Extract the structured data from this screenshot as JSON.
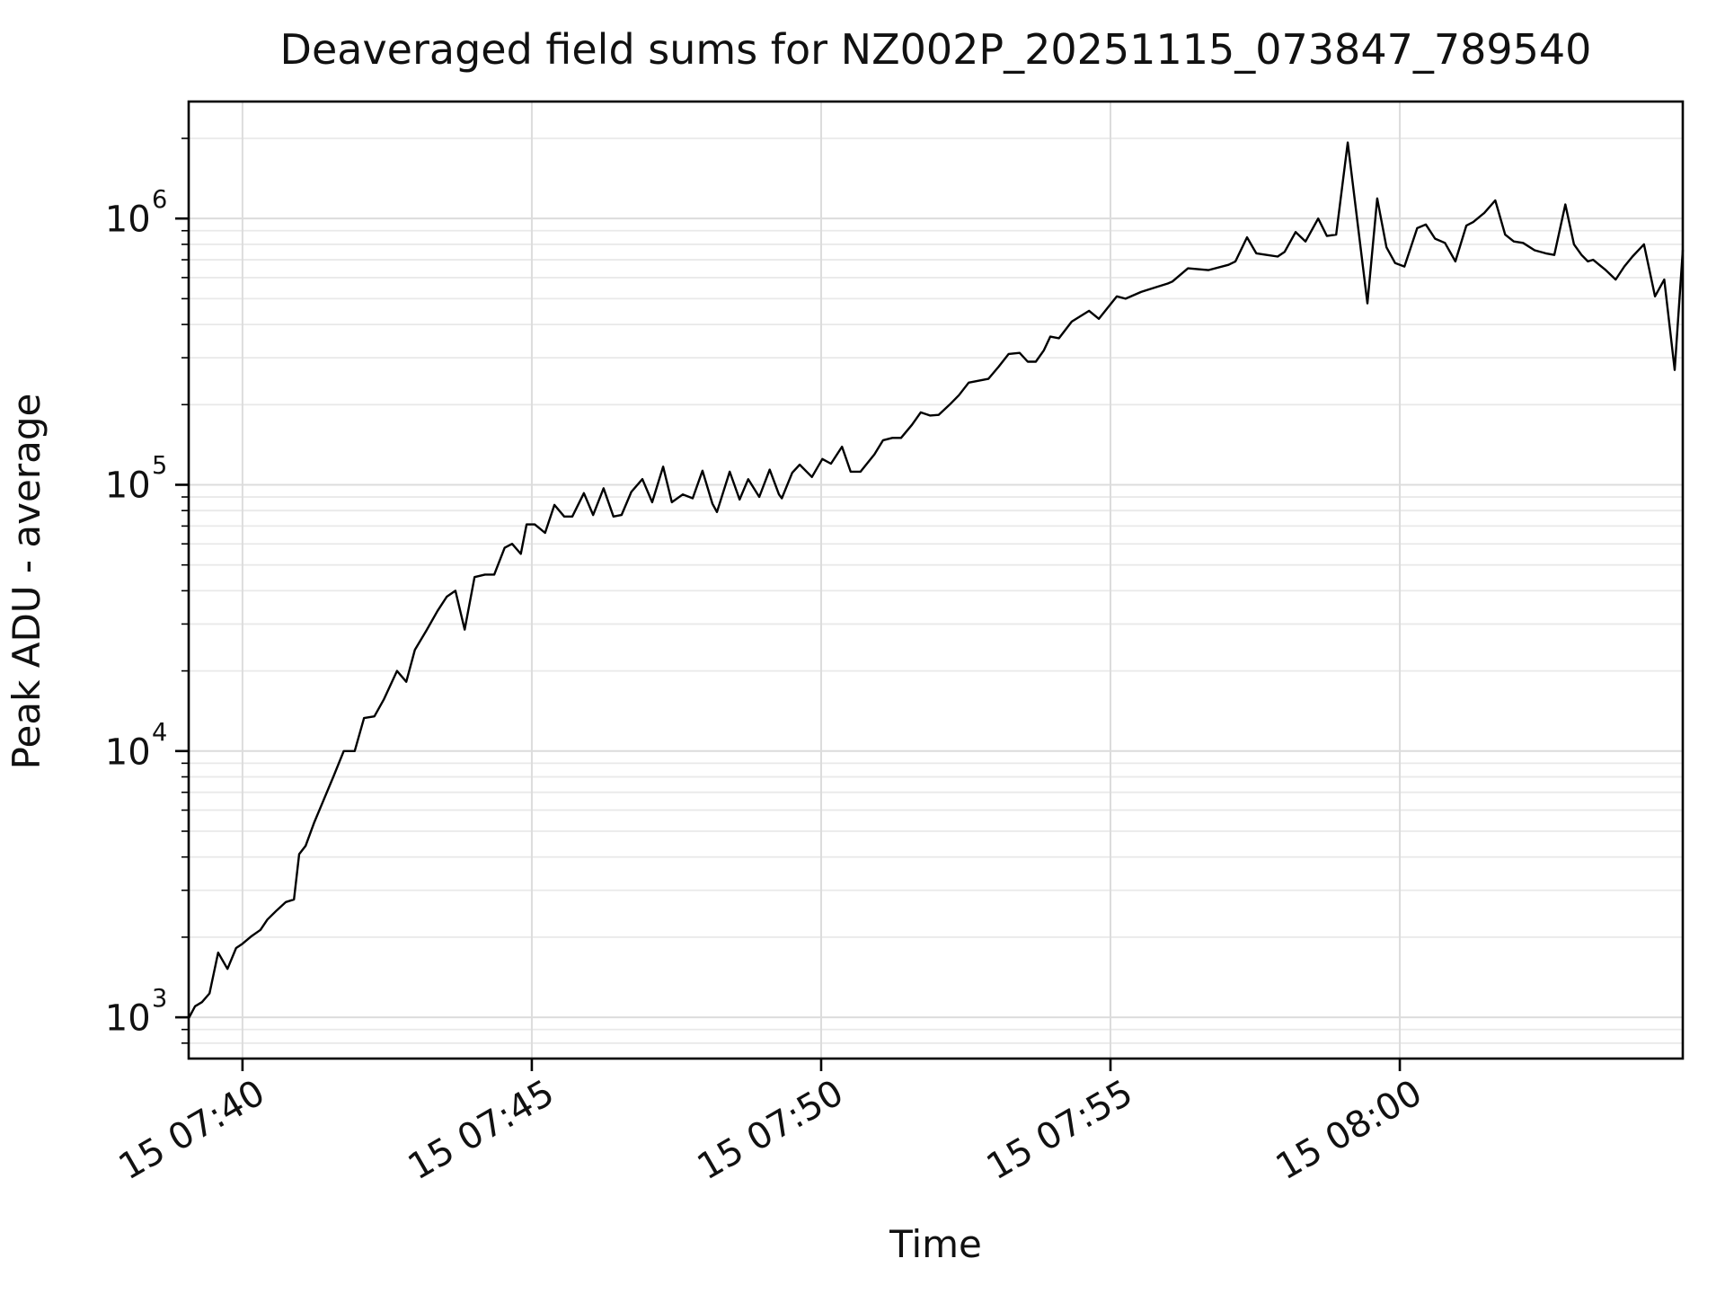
{
  "figure": {
    "background": "#ffffff"
  },
  "chart_data": {
    "type": "line",
    "title": "Deaveraged field sums for NZ002P_20251115_073847_789540",
    "xlabel": "Time",
    "ylabel": "Peak ADU - average",
    "y_scale": "log",
    "grid": true,
    "legend": "none",
    "x_unit": "minutes after 07:00 (day 15)",
    "x_range": [
      39.07,
      64.89
    ],
    "y_range": [
      700,
      2750000
    ],
    "x_ticks": [
      {
        "minute": 40,
        "label": "15 07:40"
      },
      {
        "minute": 45,
        "label": "15 07:45"
      },
      {
        "minute": 50,
        "label": "15 07:50"
      },
      {
        "minute": 55,
        "label": "15 07:55"
      },
      {
        "minute": 60,
        "label": "15 08:00"
      }
    ],
    "y_ticks": [
      {
        "value": 1000,
        "base": "10",
        "exp": "3"
      },
      {
        "value": 10000,
        "base": "10",
        "exp": "4"
      },
      {
        "value": 100000,
        "base": "10",
        "exp": "5"
      },
      {
        "value": 1000000,
        "base": "10",
        "exp": "6"
      }
    ],
    "colors": {
      "line": "#000000",
      "major_grid": "#dcdcdc",
      "minor_grid": "#e9e9e9",
      "spine": "#000000",
      "text": "#111111"
    },
    "series": {
      "t": [
        39.08,
        39.18,
        39.3,
        39.43,
        39.58,
        39.74,
        39.89,
        40.0,
        40.16,
        40.31,
        40.43,
        40.59,
        40.75,
        40.89,
        40.98,
        41.09,
        41.24,
        41.37,
        41.57,
        41.75,
        41.94,
        42.1,
        42.28,
        42.44,
        42.67,
        42.83,
        42.98,
        43.18,
        43.37,
        43.53,
        43.68,
        43.84,
        44.01,
        44.19,
        44.35,
        44.53,
        44.66,
        44.81,
        44.91,
        45.05,
        45.23,
        45.39,
        45.56,
        45.7,
        45.9,
        46.06,
        46.24,
        46.41,
        46.55,
        46.72,
        46.91,
        47.08,
        47.27,
        47.42,
        47.61,
        47.78,
        47.95,
        48.12,
        48.2,
        48.42,
        48.59,
        48.74,
        48.93,
        49.11,
        49.27,
        49.32,
        49.5,
        49.63,
        49.84,
        50.02,
        50.17,
        50.36,
        50.51,
        50.68,
        50.92,
        51.07,
        51.23,
        51.38,
        51.57,
        51.72,
        51.88,
        52.03,
        52.22,
        52.38,
        52.55,
        52.73,
        52.89,
        53.07,
        53.24,
        53.43,
        53.57,
        53.71,
        53.85,
        53.96,
        54.11,
        54.33,
        54.63,
        54.8,
        55.11,
        55.26,
        55.53,
        55.76,
        55.99,
        56.07,
        56.34,
        56.69,
        57.04,
        57.16,
        57.36,
        57.52,
        57.7,
        57.89,
        58.01,
        58.2,
        58.37,
        58.59,
        58.74,
        58.9,
        59.1,
        59.44,
        59.61,
        59.77,
        59.92,
        60.08,
        60.3,
        60.45,
        60.61,
        60.78,
        60.96,
        61.15,
        61.27,
        61.46,
        61.65,
        61.82,
        61.97,
        62.13,
        62.33,
        62.52,
        62.67,
        62.86,
        63.01,
        63.14,
        63.25,
        63.34,
        63.56,
        63.73,
        63.88,
        64.02,
        64.22,
        64.41,
        64.57,
        64.75,
        64.89
      ],
      "v": [
        1000,
        1100,
        1140,
        1230,
        1750,
        1520,
        1820,
        1890,
        2020,
        2130,
        2330,
        2520,
        2710,
        2770,
        4100,
        4400,
        5400,
        6300,
        8000,
        10000,
        10000,
        13300,
        13500,
        15600,
        20000,
        18200,
        24000,
        28400,
        33600,
        38000,
        40000,
        28600,
        45000,
        46000,
        46000,
        58000,
        60000,
        55000,
        71000,
        71000,
        66000,
        84000,
        76000,
        76000,
        93000,
        77000,
        97000,
        76000,
        77000,
        94000,
        105000,
        86000,
        117000,
        86000,
        92000,
        89000,
        113000,
        85000,
        79000,
        112000,
        88000,
        105000,
        90000,
        114000,
        92000,
        89000,
        111000,
        119000,
        107000,
        125000,
        120000,
        139000,
        112000,
        112000,
        130000,
        147000,
        150000,
        150000,
        168000,
        187000,
        182000,
        183000,
        200000,
        217000,
        242000,
        246000,
        250000,
        278000,
        310000,
        313000,
        290000,
        290000,
        320000,
        360000,
        355000,
        410000,
        450000,
        420000,
        510000,
        500000,
        530000,
        550000,
        570000,
        580000,
        650000,
        640000,
        670000,
        690000,
        850000,
        740000,
        730000,
        720000,
        750000,
        890000,
        820000,
        1000000,
        860000,
        870000,
        1930000,
        480000,
        1190000,
        780000,
        680000,
        660000,
        920000,
        950000,
        840000,
        810000,
        690000,
        940000,
        970000,
        1050000,
        1170000,
        870000,
        820000,
        810000,
        760000,
        740000,
        730000,
        1130000,
        800000,
        730000,
        690000,
        700000,
        640000,
        590000,
        660000,
        720000,
        800000,
        510000,
        590000,
        270000,
        760000
      ]
    }
  }
}
